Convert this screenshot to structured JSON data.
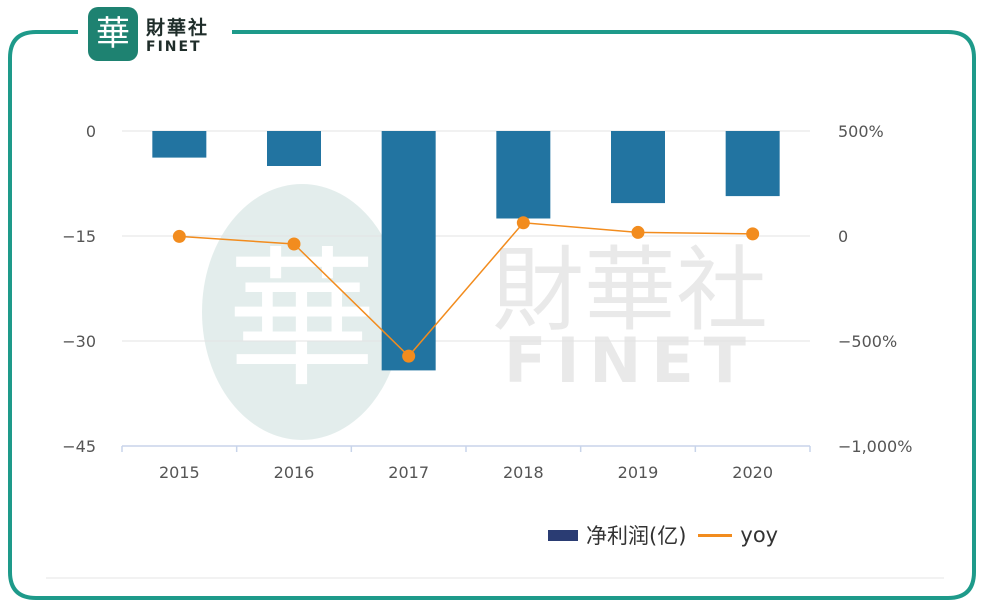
{
  "logo": {
    "seal_char": "華",
    "name_cn": "財華社",
    "name_en": "FINET"
  },
  "watermark": {
    "seal_char": "華",
    "name_cn": "財華社",
    "name_en": "FINET"
  },
  "colors": {
    "frame": "#1e9a8a",
    "bar": "#2274a1",
    "line": "#f28c1e",
    "legend_bar": "#2a3c73",
    "grid": "#e3e3e3",
    "axis": "#c8d4ea",
    "tick_text": "#555555"
  },
  "chart_data": {
    "type": "bar",
    "categories": [
      "2015",
      "2016",
      "2017",
      "2018",
      "2019",
      "2020"
    ],
    "series": [
      {
        "name": "净利润(亿)",
        "type": "bar",
        "axis": "left",
        "values": [
          -3.8,
          -5.0,
          -34.2,
          -12.5,
          -10.3,
          -9.3
        ]
      },
      {
        "name": "yoy",
        "type": "line",
        "axis": "right",
        "values": [
          -0.02,
          -0.38,
          -5.72,
          0.63,
          0.17,
          0.1
        ]
      }
    ],
    "y_left": {
      "min": -45,
      "max": 0,
      "ticks": [
        0,
        -15,
        -30,
        -45
      ],
      "tick_labels": [
        "0",
        "−15",
        "−30",
        "−45"
      ]
    },
    "y_right": {
      "min": -10,
      "max": 5,
      "ticks": [
        5,
        0,
        -5,
        -10
      ],
      "tick_labels": [
        "500%",
        "0",
        "−500%",
        "−1,000%"
      ]
    },
    "legend": {
      "position": "bottom-right",
      "items": [
        "净利润(亿)",
        "yoy"
      ]
    },
    "grid": true
  }
}
